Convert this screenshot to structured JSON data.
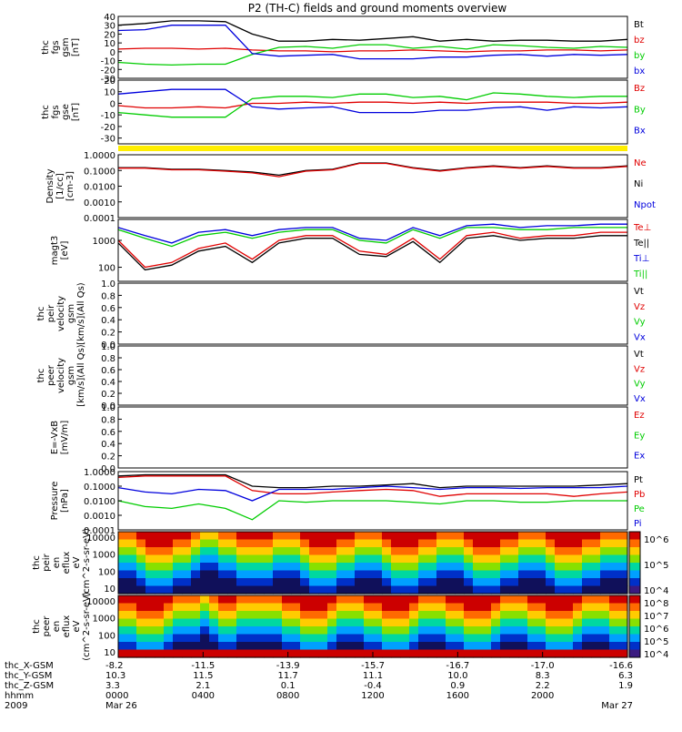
{
  "title": "P2 (TH-C) fields and ground moments overview",
  "colors": {
    "black": "#000000",
    "red": "#e00000",
    "green": "#00cc00",
    "blue": "#0000dd",
    "yellow": "#ffee00"
  },
  "chart_data": [
    {
      "id": "fgs_gsm",
      "type": "line",
      "ylabel": [
        "thc",
        "fgs",
        "gsm",
        "[nT]"
      ],
      "ylim": [
        -30,
        40
      ],
      "yticks": [
        "40",
        "30",
        "20",
        "10",
        "0",
        "-10",
        "-20",
        "-30"
      ],
      "ytick_values": [
        40,
        30,
        20,
        10,
        0,
        -10,
        -20,
        -30
      ],
      "legend": [
        {
          "label": "Bt",
          "color": "#000000"
        },
        {
          "label": "bz",
          "color": "#e00000"
        },
        {
          "label": "by",
          "color": "#00cc00"
        },
        {
          "label": "bx",
          "color": "#0000dd"
        }
      ],
      "series": [
        {
          "color": "#000000",
          "values": [
            30,
            32,
            35,
            35,
            34,
            20,
            12,
            12,
            14,
            13,
            15,
            17,
            12,
            14,
            12,
            13,
            13,
            12,
            12,
            14
          ]
        },
        {
          "color": "#e00000",
          "values": [
            3,
            4,
            4,
            3,
            4,
            2,
            1,
            1,
            0,
            1,
            1,
            2,
            1,
            0,
            1,
            1,
            2,
            2,
            1,
            2
          ]
        },
        {
          "color": "#00cc00",
          "values": [
            -12,
            -14,
            -15,
            -14,
            -14,
            -3,
            5,
            6,
            4,
            8,
            8,
            4,
            6,
            3,
            8,
            7,
            5,
            4,
            6,
            5
          ]
        },
        {
          "color": "#0000dd",
          "values": [
            24,
            25,
            30,
            30,
            30,
            -2,
            -5,
            -4,
            -3,
            -8,
            -8,
            -8,
            -6,
            -6,
            -4,
            -3,
            -5,
            -3,
            -4,
            -3
          ]
        }
      ]
    },
    {
      "id": "fgs_gse",
      "type": "line",
      "ylabel": [
        "thc",
        "fgs",
        "gse",
        "[nT]"
      ],
      "ylim": [
        -35,
        20
      ],
      "yticks": [
        "20",
        "10",
        "0",
        "-10",
        "-20",
        "-30"
      ],
      "ytick_values": [
        20,
        10,
        0,
        -10,
        -20,
        -30
      ],
      "legend": [
        {
          "label": "Bz",
          "color": "#e00000"
        },
        {
          "label": "By",
          "color": "#00cc00"
        },
        {
          "label": "Bx",
          "color": "#0000dd"
        }
      ],
      "series": [
        {
          "color": "#e00000",
          "values": [
            -2,
            -4,
            -4,
            -3,
            -4,
            0,
            0,
            1,
            0,
            1,
            1,
            0,
            1,
            0,
            1,
            1,
            1,
            0,
            0,
            1
          ]
        },
        {
          "color": "#00cc00",
          "values": [
            -8,
            -10,
            -12,
            -12,
            -12,
            4,
            6,
            6,
            5,
            8,
            8,
            5,
            6,
            3,
            9,
            8,
            6,
            5,
            6,
            6
          ]
        },
        {
          "color": "#0000dd",
          "values": [
            8,
            10,
            12,
            12,
            12,
            -3,
            -5,
            -4,
            -3,
            -8,
            -8,
            -8,
            -6,
            -6,
            -4,
            -3,
            -6,
            -3,
            -4,
            -3
          ]
        }
      ]
    },
    {
      "id": "density",
      "type": "line",
      "ylog": true,
      "ylabel": [
        "Density",
        "[1/cc]",
        "[cm-3]"
      ],
      "ylim": [
        0.0001,
        1
      ],
      "yticks": [
        "1.0000",
        "0.1000",
        "0.0100",
        "0.0010",
        "0.0001"
      ],
      "ytick_values": [
        1,
        0.1,
        0.01,
        0.001,
        0.0001
      ],
      "legend": [
        {
          "label": "Ne",
          "color": "#e00000"
        },
        {
          "label": "Ni",
          "color": "#000000"
        },
        {
          "label": "Npot",
          "color": "#0000dd"
        }
      ],
      "series": [
        {
          "color": "#000000",
          "values": [
            0.15,
            0.15,
            0.12,
            0.12,
            0.1,
            0.08,
            0.05,
            0.1,
            0.12,
            0.3,
            0.3,
            0.15,
            0.1,
            0.15,
            0.2,
            0.15,
            0.2,
            0.15,
            0.15,
            0.2
          ]
        },
        {
          "color": "#e00000",
          "values": [
            0.14,
            0.14,
            0.11,
            0.11,
            0.09,
            0.07,
            0.04,
            0.09,
            0.11,
            0.28,
            0.28,
            0.14,
            0.09,
            0.14,
            0.18,
            0.14,
            0.18,
            0.14,
            0.14,
            0.18
          ]
        }
      ]
    },
    {
      "id": "temperature",
      "type": "line",
      "ylog": true,
      "ylabel": [
        "magt3",
        "[eV]"
      ],
      "ylim": [
        30,
        6000
      ],
      "yticks": [
        "1000",
        "100"
      ],
      "ytick_values": [
        1000,
        100
      ],
      "legend": [
        {
          "label": "Te⊥",
          "color": "#e00000"
        },
        {
          "label": "Te||",
          "color": "#000000"
        },
        {
          "label": "Ti⊥",
          "color": "#0000dd"
        },
        {
          "label": "Ti||",
          "color": "#00cc00"
        }
      ],
      "series": [
        {
          "color": "#0000dd",
          "values": [
            3000,
            1500,
            800,
            2000,
            2500,
            1500,
            2500,
            3000,
            3000,
            1200,
            1000,
            3000,
            1500,
            3500,
            4000,
            3000,
            3500,
            3500,
            4000,
            4000
          ]
        },
        {
          "color": "#00cc00",
          "values": [
            2500,
            1200,
            600,
            1500,
            2000,
            1200,
            2000,
            2500,
            2500,
            1000,
            800,
            2500,
            1200,
            3000,
            3000,
            2500,
            2500,
            3000,
            3000,
            3000
          ]
        },
        {
          "color": "#e00000",
          "values": [
            1000,
            100,
            150,
            500,
            800,
            200,
            1000,
            1500,
            1500,
            400,
            300,
            1200,
            200,
            1500,
            2000,
            1200,
            1500,
            1500,
            2000,
            2000
          ]
        },
        {
          "color": "#000000",
          "values": [
            800,
            80,
            120,
            400,
            600,
            150,
            800,
            1200,
            1200,
            300,
            250,
            900,
            150,
            1200,
            1500,
            1000,
            1200,
            1200,
            1500,
            1500
          ]
        }
      ]
    },
    {
      "id": "peir_velocity",
      "type": "line",
      "ylabel": [
        "thc",
        "peir",
        "velocity",
        "gsm",
        "[km/s](All Qs)"
      ],
      "ylim": [
        0,
        1
      ],
      "yticks": [
        "1.0",
        "0.8",
        "0.6",
        "0.4",
        "0.2",
        "0.0"
      ],
      "ytick_values": [
        1,
        0.8,
        0.6,
        0.4,
        0.2,
        0
      ],
      "legend": [
        {
          "label": "Vt",
          "color": "#000000"
        },
        {
          "label": "Vz",
          "color": "#e00000"
        },
        {
          "label": "Vy",
          "color": "#00cc00"
        },
        {
          "label": "Vx",
          "color": "#0000dd"
        }
      ],
      "series": []
    },
    {
      "id": "peer_velocity",
      "type": "line",
      "ylabel": [
        "thc",
        "peer",
        "velocity",
        "gsm",
        "[km/s](All Qs)"
      ],
      "ylim": [
        0,
        1
      ],
      "yticks": [
        "1.0",
        "0.8",
        "0.6",
        "0.4",
        "0.2",
        "0.0"
      ],
      "ytick_values": [
        1,
        0.8,
        0.6,
        0.4,
        0.2,
        0
      ],
      "legend": [
        {
          "label": "Vt",
          "color": "#000000"
        },
        {
          "label": "Vz",
          "color": "#e00000"
        },
        {
          "label": "Vy",
          "color": "#00cc00"
        },
        {
          "label": "Vx",
          "color": "#0000dd"
        }
      ],
      "series": []
    },
    {
      "id": "efield",
      "type": "line",
      "ylabel": [
        "E=-VxB",
        "[mV/m]"
      ],
      "ylim": [
        0,
        1
      ],
      "yticks": [
        "1.0",
        "0.8",
        "0.6",
        "0.4",
        "0.2",
        "0.0"
      ],
      "ytick_values": [
        1,
        0.8,
        0.6,
        0.4,
        0.2,
        0
      ],
      "legend": [
        {
          "label": "Ez",
          "color": "#e00000"
        },
        {
          "label": "Ey",
          "color": "#00cc00"
        },
        {
          "label": "Ex",
          "color": "#0000dd"
        }
      ],
      "series": []
    },
    {
      "id": "pressure",
      "type": "line",
      "ylog": true,
      "ylabel": [
        "Pressure",
        "[nPa]"
      ],
      "ylim": [
        0.0001,
        1
      ],
      "yticks": [
        "1.0000",
        "0.1000",
        "0.0100",
        "0.0010",
        "0.0001"
      ],
      "ytick_values": [
        1,
        0.1,
        0.01,
        0.001,
        0.0001
      ],
      "legend": [
        {
          "label": "Pt",
          "color": "#000000"
        },
        {
          "label": "Pb",
          "color": "#e00000"
        },
        {
          "label": "Pe",
          "color": "#00cc00"
        },
        {
          "label": "Pi",
          "color": "#0000dd"
        }
      ],
      "series": [
        {
          "color": "#000000",
          "values": [
            0.5,
            0.6,
            0.6,
            0.6,
            0.6,
            0.1,
            0.08,
            0.08,
            0.1,
            0.1,
            0.12,
            0.15,
            0.08,
            0.1,
            0.1,
            0.1,
            0.1,
            0.1,
            0.12,
            0.15
          ]
        },
        {
          "color": "#e00000",
          "values": [
            0.4,
            0.5,
            0.5,
            0.5,
            0.5,
            0.05,
            0.03,
            0.03,
            0.04,
            0.05,
            0.06,
            0.05,
            0.02,
            0.03,
            0.03,
            0.03,
            0.03,
            0.02,
            0.03,
            0.04
          ]
        },
        {
          "color": "#0000dd",
          "values": [
            0.08,
            0.04,
            0.03,
            0.06,
            0.05,
            0.01,
            0.06,
            0.06,
            0.06,
            0.08,
            0.1,
            0.08,
            0.06,
            0.08,
            0.08,
            0.07,
            0.08,
            0.08,
            0.08,
            0.1
          ]
        },
        {
          "color": "#00cc00",
          "values": [
            0.01,
            0.004,
            0.003,
            0.006,
            0.003,
            0.0005,
            0.01,
            0.008,
            0.01,
            0.01,
            0.01,
            0.008,
            0.006,
            0.01,
            0.01,
            0.008,
            0.008,
            0.01,
            0.01,
            0.01
          ]
        }
      ]
    },
    {
      "id": "peir_spectrogram",
      "type": "heatmap",
      "ylabel": [
        "thc",
        "peir",
        "en",
        "eflux",
        "eV",
        "(cm^2-s-sr-eV)"
      ],
      "yticks": [
        "10000",
        "1000",
        "100",
        "10"
      ],
      "colorbar": {
        "ticks": [
          "10^6",
          "10^5",
          "10^4"
        ]
      }
    },
    {
      "id": "peer_spectrogram",
      "type": "heatmap",
      "ylabel": [
        "thc",
        "peer",
        "en",
        "eflux",
        "eV",
        "(cm^2-s-sr-eV)"
      ],
      "yticks": [
        "10000",
        "1000",
        "100",
        "10"
      ],
      "colorbar": {
        "ticks": [
          "10^8",
          "10^7",
          "10^6",
          "10^5",
          "10^4"
        ]
      }
    }
  ],
  "xaxis": {
    "row_labels": [
      "thc_X-GSM",
      "thc_Y-GSM",
      "thc_Z-GSM",
      "hhmm",
      "2009"
    ],
    "columns": [
      [
        "-8.2",
        "10.3",
        "3.3",
        "0000",
        "Mar 26"
      ],
      [
        "-11.5",
        "11.5",
        "2.1",
        "0400",
        ""
      ],
      [
        "-13.9",
        "11.7",
        "0.1",
        "0800",
        ""
      ],
      [
        "-15.7",
        "11.1",
        "-0.4",
        "1200",
        ""
      ],
      [
        "-16.7",
        "10.0",
        "0.9",
        "1600",
        ""
      ],
      [
        "-17.0",
        "8.3",
        "2.2",
        "2000",
        ""
      ],
      [
        "-16.6",
        "6.3",
        "1.9",
        "",
        ""
      ]
    ],
    "end_date": "Mar 27"
  }
}
